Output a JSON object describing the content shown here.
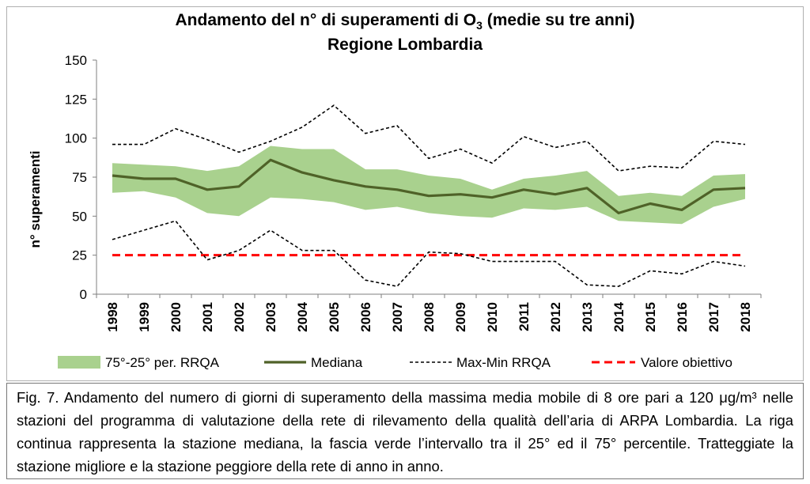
{
  "chart_data": {
    "type": "line",
    "title_line1": "Andamento del n° di superamenti di O",
    "title_subscript": "3",
    "title_suffix": " (medie su tre anni)",
    "title_line2": "Regione Lombardia",
    "xlabel": "",
    "ylabel": "n° superamenti",
    "ylim": [
      0,
      150
    ],
    "yticks": [
      "0",
      "25",
      "50",
      "75",
      "100",
      "125",
      "150"
    ],
    "categories": [
      "1998",
      "1999",
      "2000",
      "2001",
      "2002",
      "2003",
      "2004",
      "2005",
      "2006",
      "2007",
      "2008",
      "2009",
      "2010",
      "2011",
      "2012",
      "2013",
      "2014",
      "2015",
      "2016",
      "2017",
      "2018"
    ],
    "band": {
      "name": "75°-25° per. RRQA",
      "upper": [
        84,
        83,
        82,
        79,
        82,
        95,
        93,
        93,
        80,
        80,
        76,
        74,
        67,
        74,
        76,
        79,
        63,
        65,
        63,
        76,
        77
      ],
      "lower": [
        65,
        66,
        62,
        52,
        50,
        62,
        61,
        59,
        54,
        56,
        52,
        50,
        49,
        55,
        54,
        56,
        47,
        46,
        45,
        56,
        61
      ],
      "color": "#a9d18e"
    },
    "series": [
      {
        "name": "Mediana",
        "color": "#4f6228",
        "values": [
          76,
          74,
          74,
          67,
          69,
          86,
          78,
          73,
          69,
          67,
          63,
          64,
          62,
          67,
          64,
          68,
          52,
          58,
          54,
          67,
          68
        ]
      },
      {
        "name": "Max-Min RRQA",
        "color": "#000000",
        "max": [
          96,
          96,
          106,
          99,
          91,
          98,
          107,
          121,
          103,
          108,
          87,
          93,
          84,
          101,
          94,
          98,
          79,
          82,
          81,
          98,
          96
        ],
        "min": [
          35,
          41,
          47,
          22,
          28,
          41,
          28,
          28,
          9,
          5,
          27,
          26,
          21,
          21,
          21,
          6,
          5,
          15,
          13,
          21,
          18
        ]
      },
      {
        "name": "Valore obiettivo",
        "color": "#ff0000",
        "value": 25
      }
    ],
    "grid": false,
    "legend": "bottom"
  },
  "caption": "Fig. 7. Andamento del numero di giorni di superamento della massima media mobile di 8 ore pari a 120 μg/m³ nelle stazioni del programma di valutazione della rete di rilevamento della qualità dell’aria di ARPA Lombardia. La riga continua rappresenta la stazione mediana, la fascia verde l’intervallo tra il 25° ed il 75° percentile. Tratteggiate la stazione migliore e la stazione peggiore della rete di anno in anno."
}
